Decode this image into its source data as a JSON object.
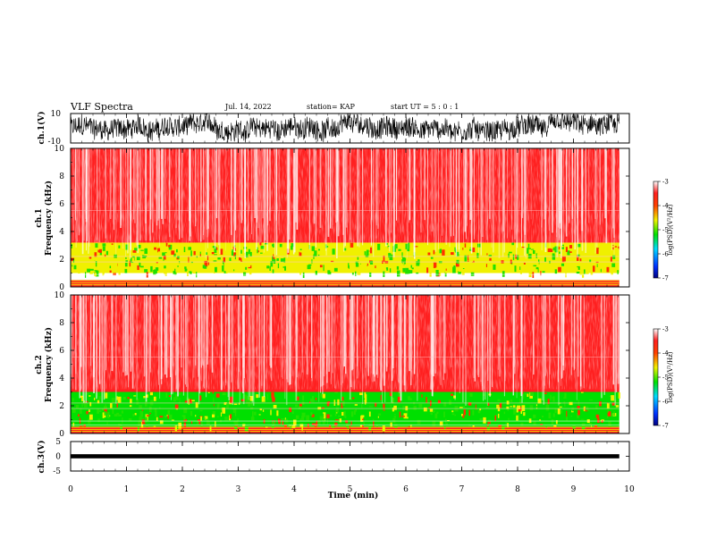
{
  "header": {
    "title": "VLF Spectra",
    "date": "Jul. 14, 2022",
    "station": "station= KAP",
    "start_ut": "start UT =  5 : 0 : 1"
  },
  "chart_data": [
    {
      "type": "line",
      "panel": "ch.1 waveform",
      "ylabel": "ch.1(V)",
      "ylim": [
        -10,
        10
      ],
      "yticks": [
        "10",
        "-10"
      ],
      "xlim": [
        0,
        10
      ],
      "trace_color": "#000000"
    },
    {
      "type": "heatmap",
      "panel": "ch.1 spectrogram",
      "ylabel": "ch.1\nFrequency (kHz)",
      "ylim": [
        0,
        10
      ],
      "yticks": [
        "0",
        "2",
        "4",
        "6",
        "8",
        "10"
      ],
      "xlim": [
        0,
        10
      ],
      "colorbar": {
        "label": "log(PSD)(V²/Hz)",
        "range": [
          -7,
          -3
        ],
        "ticks": [
          "-3",
          "-4",
          "-5",
          "-6",
          "-7"
        ]
      },
      "bands": [
        {
          "freq_khz": [
            0,
            0.5
          ],
          "level": -3.5
        },
        {
          "freq_khz": [
            1,
            3.2
          ],
          "level": -4.7
        },
        {
          "freq_khz": [
            3.2,
            10
          ],
          "level": -3.6
        }
      ]
    },
    {
      "type": "heatmap",
      "panel": "ch.2 spectrogram",
      "ylabel": "ch.2\nFrequency (kHz)",
      "ylim": [
        0,
        10
      ],
      "yticks": [
        "0",
        "2",
        "4",
        "6",
        "8",
        "10"
      ],
      "xlim": [
        0,
        10
      ],
      "colorbar": {
        "label": "log(PSD)(V²/Hz)",
        "range": [
          -7,
          -3
        ],
        "ticks": [
          "-3",
          "-4",
          "-5",
          "-6",
          "-7"
        ]
      },
      "bands": [
        {
          "freq_khz": [
            0,
            0.5
          ],
          "level": -3.5
        },
        {
          "freq_khz": [
            0.5,
            3.0
          ],
          "level": -4.9
        },
        {
          "freq_khz": [
            3.0,
            10
          ],
          "level": -3.6
        }
      ]
    },
    {
      "type": "line",
      "panel": "ch.3 waveform",
      "ylabel": "ch.3(V)",
      "ylim": [
        -5,
        5
      ],
      "yticks": [
        "5",
        "0",
        "-5"
      ],
      "xlim": [
        0,
        10
      ],
      "trace_level": [
        -0.2,
        0.2
      ],
      "trace_color": "#000000"
    }
  ],
  "xaxis": {
    "label": "Time (min)",
    "ticks": [
      "0",
      "1",
      "2",
      "3",
      "4",
      "5",
      "6",
      "7",
      "8",
      "9",
      "10"
    ],
    "data_end_min": 9.82
  }
}
